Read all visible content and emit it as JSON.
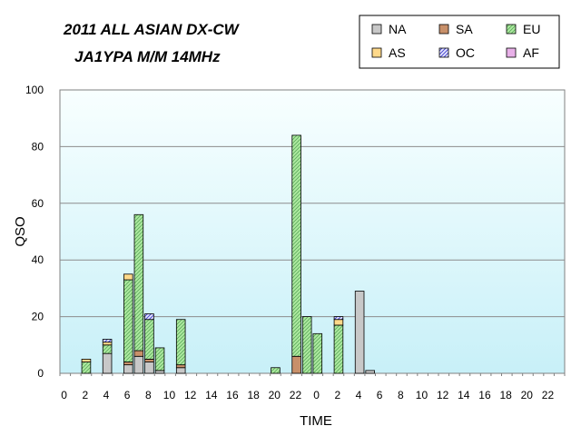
{
  "chart_data": {
    "type": "bar",
    "stacked": true,
    "title_lines": [
      "2011 ALL ASIAN DX-CW",
      "JA1YPA M/M   14MHz"
    ],
    "xlabel": "TIME",
    "ylabel": "QSO",
    "ylim": [
      0,
      100
    ],
    "yticks": [
      "0",
      "20",
      "40",
      "60",
      "80",
      "100"
    ],
    "x_tick_labels": [
      "0",
      "2",
      "4",
      "6",
      "8",
      "10",
      "12",
      "14",
      "16",
      "18",
      "20",
      "22",
      "0",
      "2",
      "4",
      "6",
      "8",
      "10",
      "12",
      "14",
      "16",
      "18",
      "20",
      "22"
    ],
    "grid": true,
    "legend_position": "top-right",
    "colors": {
      "NA": "#c8c8c8",
      "SA": "#c8906a",
      "EU": "#aeeaa0",
      "AS": "#ffd98a",
      "OC": "#5a5ad8",
      "AF": "#e8b0e8",
      "plot_bg_top": "#f8ffff",
      "plot_bg_bottom": "#c8f0f8"
    },
    "series": [
      {
        "name": "NA",
        "values": [
          0,
          0,
          0,
          0,
          7,
          0,
          3,
          6,
          4,
          1,
          0,
          2,
          0,
          0,
          0,
          0,
          0,
          0,
          0,
          0,
          0,
          0,
          0,
          0,
          0,
          0,
          0,
          0,
          29,
          1,
          0,
          0,
          0,
          0,
          0,
          0,
          0,
          0,
          0,
          0,
          0,
          0,
          0,
          0,
          0,
          0,
          0,
          0
        ]
      },
      {
        "name": "SA",
        "values": [
          0,
          0,
          0,
          0,
          0,
          0,
          1,
          2,
          1,
          0,
          0,
          1,
          0,
          0,
          0,
          0,
          0,
          0,
          0,
          0,
          0,
          0,
          6,
          0,
          0,
          0,
          0,
          0,
          0,
          0,
          0,
          0,
          0,
          0,
          0,
          0,
          0,
          0,
          0,
          0,
          0,
          0,
          0,
          0,
          0,
          0,
          0,
          0
        ]
      },
      {
        "name": "EU",
        "values": [
          0,
          0,
          4,
          0,
          3,
          0,
          29,
          48,
          14,
          8,
          0,
          16,
          0,
          0,
          0,
          0,
          0,
          0,
          0,
          0,
          2,
          0,
          78,
          20,
          14,
          0,
          17,
          0,
          0,
          0,
          0,
          0,
          0,
          0,
          0,
          0,
          0,
          0,
          0,
          0,
          0,
          0,
          0,
          0,
          0,
          0,
          0,
          0
        ]
      },
      {
        "name": "AS",
        "values": [
          0,
          0,
          1,
          0,
          1,
          0,
          2,
          0,
          0,
          0,
          0,
          0,
          0,
          0,
          0,
          0,
          0,
          0,
          0,
          0,
          0,
          0,
          0,
          0,
          0,
          0,
          2,
          0,
          0,
          0,
          0,
          0,
          0,
          0,
          0,
          0,
          0,
          0,
          0,
          0,
          0,
          0,
          0,
          0,
          0,
          0,
          0,
          0
        ]
      },
      {
        "name": "OC",
        "values": [
          0,
          0,
          0,
          0,
          1,
          0,
          0,
          0,
          2,
          0,
          0,
          0,
          0,
          0,
          0,
          0,
          0,
          0,
          0,
          0,
          0,
          0,
          0,
          0,
          0,
          0,
          1,
          0,
          0,
          0,
          0,
          0,
          0,
          0,
          0,
          0,
          0,
          0,
          0,
          0,
          0,
          0,
          0,
          0,
          0,
          0,
          0,
          0
        ]
      },
      {
        "name": "AF",
        "values": [
          0,
          0,
          0,
          0,
          0,
          0,
          0,
          0,
          0,
          0,
          0,
          0,
          0,
          0,
          0,
          0,
          0,
          0,
          0,
          0,
          0,
          0,
          0,
          0,
          0,
          0,
          0,
          0,
          0,
          0,
          0,
          0,
          0,
          0,
          0,
          0,
          0,
          0,
          0,
          0,
          0,
          0,
          0,
          0,
          0,
          0,
          0,
          0
        ]
      }
    ]
  }
}
